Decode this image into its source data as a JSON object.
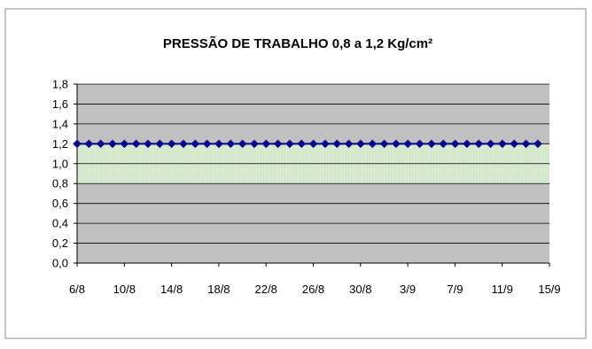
{
  "chart_data": {
    "type": "line",
    "title": "PRESSÃO DE TRABALHO  0,8 a 1,2 Kg/cm²",
    "xlabel": "",
    "ylabel": "",
    "ylim": [
      0,
      1.8
    ],
    "y_ticks": [
      "0,0",
      "0,2",
      "0,4",
      "0,6",
      "0,8",
      "1,0",
      "1,2",
      "1,4",
      "1,6",
      "1,8"
    ],
    "x_ticks": [
      "6/8",
      "10/8",
      "14/8",
      "18/8",
      "22/8",
      "26/8",
      "30/8",
      "3/9",
      "7/9",
      "11/9",
      "15/9"
    ],
    "x_start": "6/8",
    "x_end": "15/9",
    "grid": true,
    "band": {
      "low": 0.8,
      "high": 1.2,
      "color": "#d8ead2"
    },
    "plot_background": "#c0c0c0",
    "series": [
      {
        "color": "#00008b",
        "values": [
          1.2,
          1.2,
          1.2,
          1.2,
          1.2,
          1.2,
          1.2,
          1.2,
          1.2,
          1.2,
          1.2,
          1.2,
          1.2,
          1.2,
          1.2,
          1.2,
          1.2,
          1.2,
          1.2,
          1.2,
          1.2,
          1.2,
          1.2,
          1.2,
          1.2,
          1.2,
          1.2,
          1.2,
          1.2,
          1.2,
          1.2,
          1.2,
          1.2,
          1.2,
          1.2,
          1.2,
          1.2,
          1.2,
          1.2,
          1.2
        ]
      }
    ]
  }
}
